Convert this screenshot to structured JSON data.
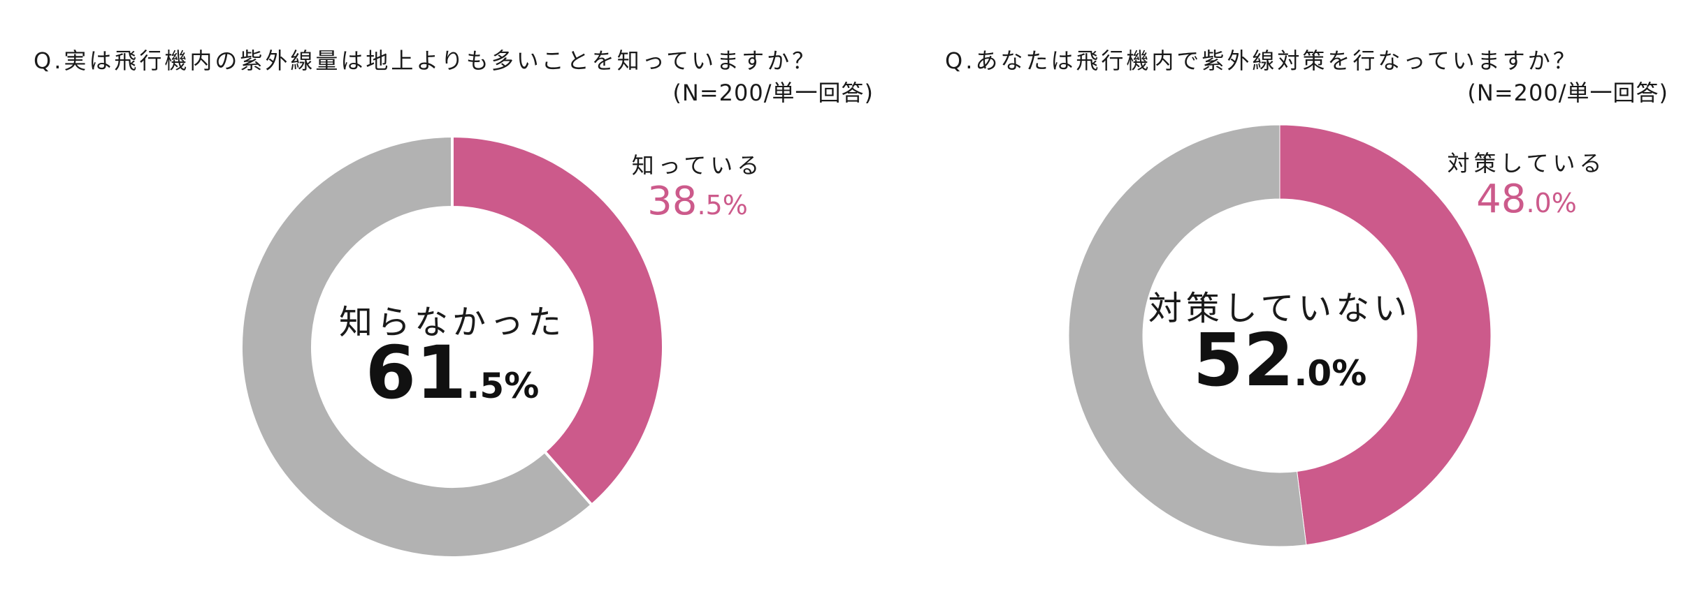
{
  "chart_data": [
    {
      "type": "pie",
      "question": "Q.実は飛行機内の紫外線量は地上よりも多いことを知っていますか？",
      "note": "(N=200/単一回答)",
      "colors": {
        "primary": "#cc5a8b",
        "secondary": "#b2b2b2"
      },
      "slices": [
        {
          "label": "知っている",
          "value": 38.5,
          "int": "38",
          "dec": ".5%"
        },
        {
          "label": "知らなかった",
          "value": 61.5,
          "int": "61",
          "dec": ".5%"
        }
      ]
    },
    {
      "type": "pie",
      "question": "Q.あなたは飛行機内で紫外線対策を行なっていますか？",
      "note": "(N=200/単一回答)",
      "colors": {
        "primary": "#cc5a8b",
        "secondary": "#b2b2b2"
      },
      "slices": [
        {
          "label": "対策している",
          "value": 48.0,
          "int": "48",
          "dec": ".0%"
        },
        {
          "label": "対策していない",
          "value": 52.0,
          "int": "52",
          "dec": ".0%"
        }
      ]
    }
  ]
}
